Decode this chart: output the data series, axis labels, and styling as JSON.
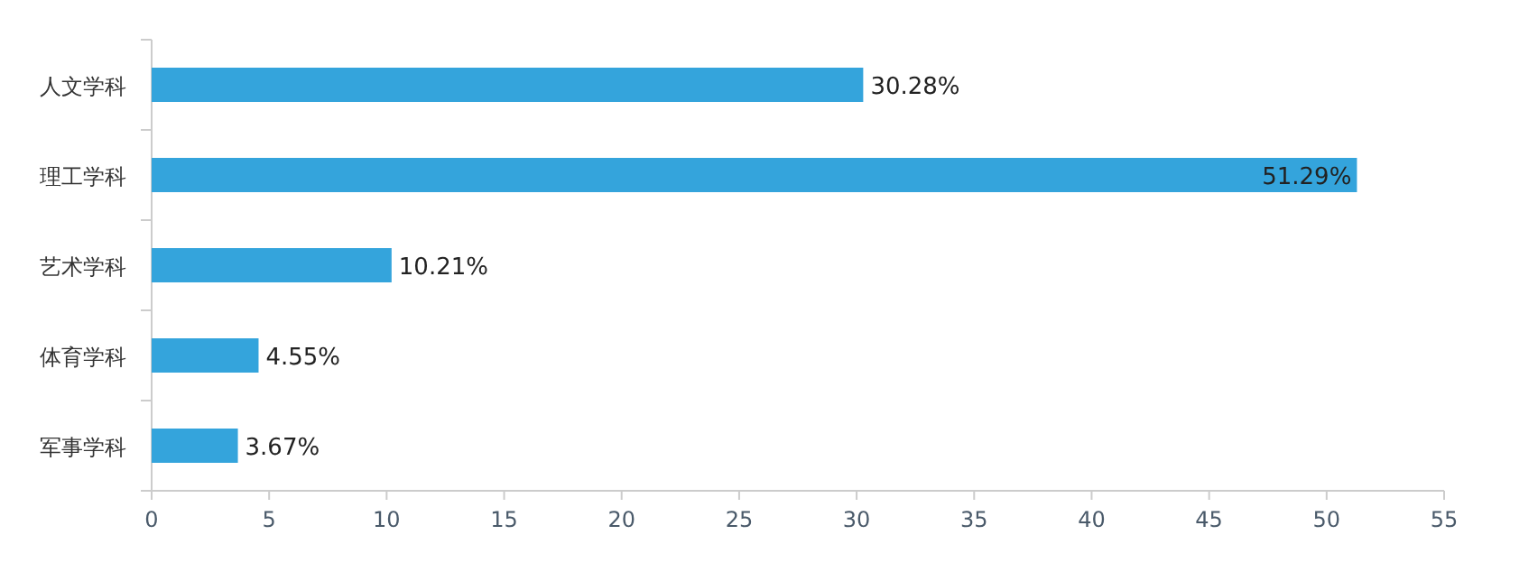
{
  "chart_data": {
    "type": "bar",
    "orientation": "horizontal",
    "categories": [
      "人文学科",
      "理工学科",
      "艺术学科",
      "体育学科",
      "军事学科"
    ],
    "values": [
      30.28,
      51.29,
      10.21,
      4.55,
      3.67
    ],
    "value_labels": [
      "30.28%",
      "51.29%",
      "10.21%",
      "4.55%",
      "3.67%"
    ],
    "color": "#34a4dc",
    "xlim": [
      0,
      55
    ],
    "xticks": [
      0,
      5,
      10,
      15,
      20,
      25,
      30,
      35,
      40,
      45,
      50,
      55
    ],
    "grid": false
  }
}
